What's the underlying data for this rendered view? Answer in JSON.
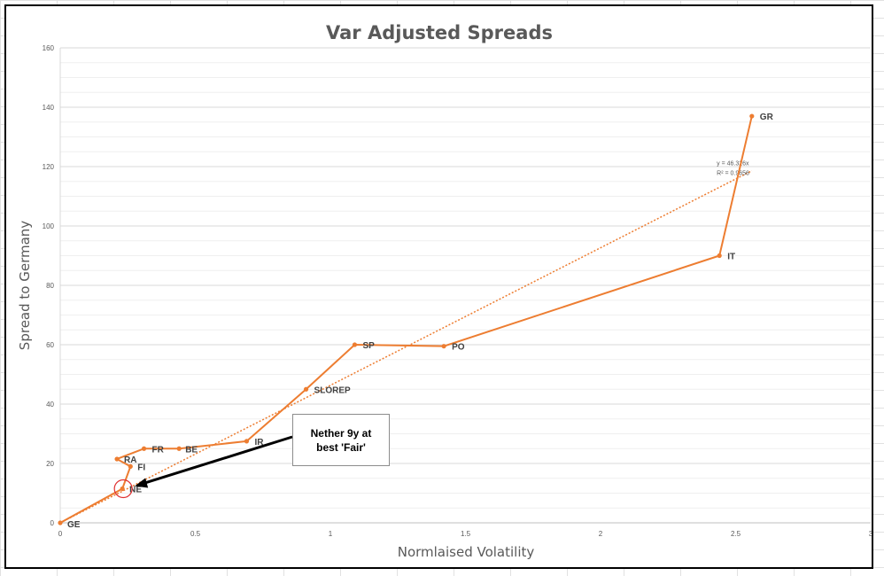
{
  "chart_data": {
    "type": "line",
    "title": "Var Adjusted Spreads",
    "xlabel": "Normlaised Volatility",
    "ylabel": "Spread to Germany",
    "xlim": [
      0,
      3
    ],
    "ylim": [
      0,
      160
    ],
    "x_ticks": [
      "0",
      "0.5",
      "1",
      "1.5",
      "2",
      "2.5",
      "3"
    ],
    "y_ticks": [
      "0",
      "20",
      "40",
      "60",
      "80",
      "100",
      "120",
      "140",
      "160"
    ],
    "grid": true,
    "legend": "none",
    "series": [
      {
        "color": "#ED7D31",
        "points": [
          {
            "label": "GE",
            "x": 0.0,
            "y": 0.0
          },
          {
            "label": "NE",
            "x": 0.23,
            "y": 11.5
          },
          {
            "label": "FI",
            "x": 0.26,
            "y": 19
          },
          {
            "label": "RA",
            "x": 0.21,
            "y": 21.5
          },
          {
            "label": "FR",
            "x": 0.31,
            "y": 25
          },
          {
            "label": "BE",
            "x": 0.44,
            "y": 25
          },
          {
            "label": "IR",
            "x": 0.69,
            "y": 27.5
          },
          {
            "label": "SLOREP",
            "x": 0.91,
            "y": 45
          },
          {
            "label": "SP",
            "x": 1.09,
            "y": 60
          },
          {
            "label": "PO",
            "x": 1.42,
            "y": 59.5
          },
          {
            "label": "IT",
            "x": 2.44,
            "y": 90
          },
          {
            "label": "GR",
            "x": 2.56,
            "y": 137
          }
        ]
      }
    ],
    "trendline": {
      "style": "dotted",
      "color": "#ED7D31",
      "slope": 46.326,
      "x_range": [
        0,
        2.56
      ],
      "equation": "y = 46.326x",
      "r_squared": "R² = 0.9656"
    },
    "annotations": [
      {
        "text_lines": [
          "Nether 9y at",
          "best 'Fair'"
        ],
        "points_to": "NE"
      }
    ]
  }
}
